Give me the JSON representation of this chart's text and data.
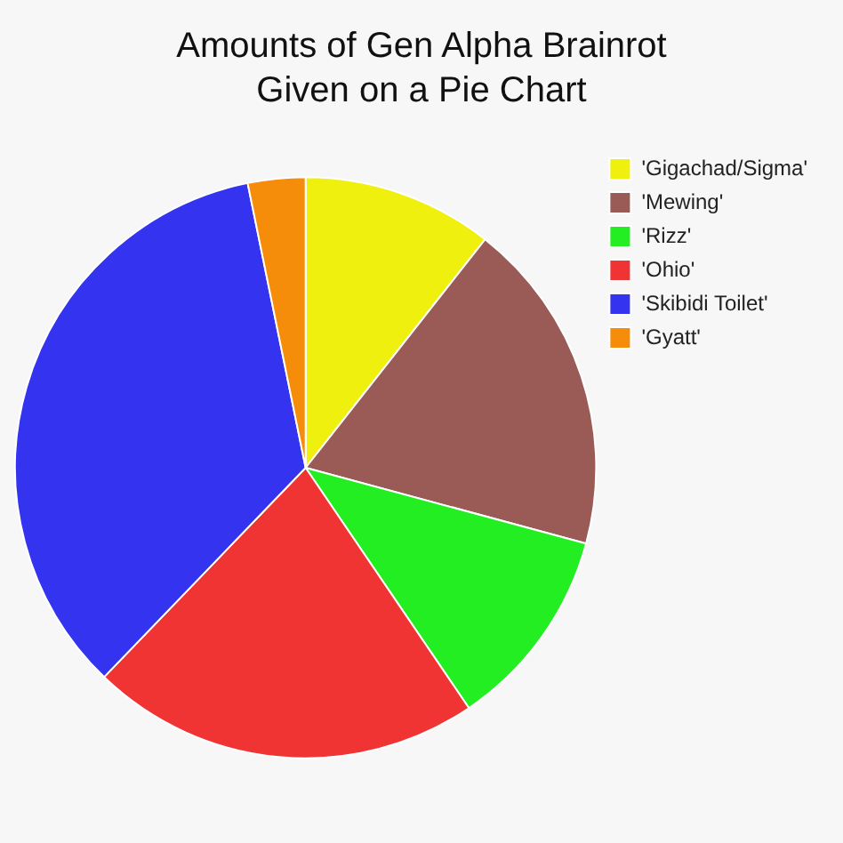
{
  "chart_data": {
    "type": "pie",
    "title": "Amounts of Gen Alpha Brainrot Given on a Pie Chart",
    "categories": [
      "'Gigachad/Sigma'",
      "'Mewing'",
      "'Rizz'",
      "'Ohio'",
      "'Skibidi Toilet'",
      "'Gyatt'"
    ],
    "values": [
      10.6,
      18.6,
      11.3,
      21.7,
      34.6,
      3.2
    ],
    "colors": [
      "#f0f00f",
      "#9a5a55",
      "#22ee22",
      "#f03333",
      "#3333f0",
      "#f58c0a"
    ],
    "legend": "top right"
  }
}
